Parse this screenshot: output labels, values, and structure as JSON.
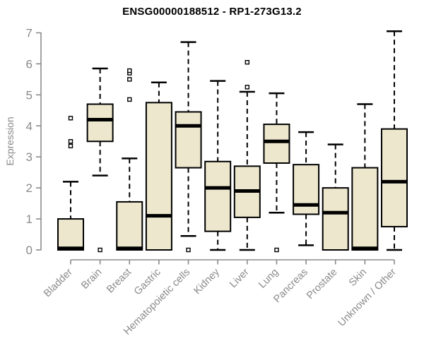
{
  "chart_data": {
    "type": "boxplot",
    "title": "ENSG00000188512 - RP1-273G13.2",
    "xlabel": "",
    "ylabel": "Expression",
    "ylim": [
      0,
      7
    ],
    "yticks": [
      0,
      1,
      2,
      3,
      4,
      5,
      6,
      7
    ],
    "grid": false,
    "legend": null,
    "categories": [
      "Bladder",
      "Brain",
      "Breast",
      "Gastric",
      "Hematopoietic cells",
      "Kidney",
      "Liver",
      "Lung",
      "Pancreas",
      "Prostate",
      "Skin",
      "Unknown / Other"
    ],
    "series": [
      {
        "name": "Bladder",
        "whisker_low": 0,
        "q1": 0,
        "median": 0.05,
        "q3": 1.0,
        "whisker_high": 2.2,
        "outliers": [
          3.35,
          3.5,
          4.25
        ]
      },
      {
        "name": "Brain",
        "whisker_low": 2.4,
        "q1": 3.5,
        "median": 4.2,
        "q3": 4.7,
        "whisker_high": 5.85,
        "outliers": [
          0
        ]
      },
      {
        "name": "Breast",
        "whisker_low": 0,
        "q1": 0,
        "median": 0.05,
        "q3": 1.55,
        "whisker_high": 2.95,
        "outliers": [
          4.85,
          5.5,
          5.7,
          5.78
        ]
      },
      {
        "name": "Gastric",
        "whisker_low": 0,
        "q1": 0,
        "median": 1.1,
        "q3": 4.75,
        "whisker_high": 5.4,
        "outliers": []
      },
      {
        "name": "Hematopoietic cells",
        "whisker_low": 0.45,
        "q1": 2.65,
        "median": 4.0,
        "q3": 4.45,
        "whisker_high": 6.7,
        "outliers": [
          0
        ]
      },
      {
        "name": "Kidney",
        "whisker_low": 0,
        "q1": 0.6,
        "median": 2.0,
        "q3": 2.85,
        "whisker_high": 5.45,
        "outliers": []
      },
      {
        "name": "Liver",
        "whisker_low": 0,
        "q1": 1.05,
        "median": 1.9,
        "q3": 2.7,
        "whisker_high": 5.1,
        "outliers": [
          5.25,
          6.05
        ]
      },
      {
        "name": "Lung",
        "whisker_low": 1.2,
        "q1": 2.8,
        "median": 3.5,
        "q3": 4.05,
        "whisker_high": 5.05,
        "outliers": [
          0
        ]
      },
      {
        "name": "Pancreas",
        "whisker_low": 0.15,
        "q1": 1.15,
        "median": 1.45,
        "q3": 2.75,
        "whisker_high": 3.8,
        "outliers": []
      },
      {
        "name": "Prostate",
        "whisker_low": 0,
        "q1": 0,
        "median": 1.2,
        "q3": 2.0,
        "whisker_high": 3.4,
        "outliers": []
      },
      {
        "name": "Skin",
        "whisker_low": 0,
        "q1": 0,
        "median": 0.05,
        "q3": 2.65,
        "whisker_high": 4.7,
        "outliers": []
      },
      {
        "name": "Unknown / Other",
        "whisker_low": 0,
        "q1": 0.75,
        "median": 2.2,
        "q3": 3.9,
        "whisker_high": 7.05,
        "outliers": []
      }
    ],
    "colors": {
      "box_fill": "#ece7cd",
      "box_stroke": "#000000",
      "median": "#000000",
      "whisker": "#000000",
      "axis": "#8a8a8a",
      "title": "#000000",
      "background": "#ffffff"
    }
  }
}
